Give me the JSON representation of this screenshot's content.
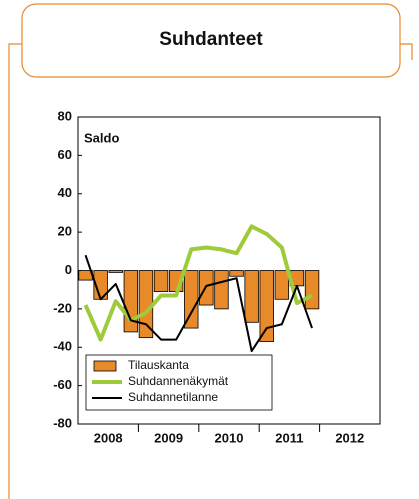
{
  "header": {
    "title": "Suhdanteet"
  },
  "chart_data": {
    "type": "bar-line",
    "annotation": "Saldo",
    "categories": [
      "2008",
      "2009",
      "2010",
      "2011",
      "2012"
    ],
    "x": [
      2008.125,
      2008.375,
      2008.625,
      2008.875,
      2009.125,
      2009.375,
      2009.625,
      2009.875,
      2010.125,
      2010.375,
      2010.625,
      2010.875,
      2011.125,
      2011.375,
      2011.625,
      2011.875
    ],
    "xlim": [
      2008,
      2013
    ],
    "ylim": [
      -80,
      80
    ],
    "yticks": [
      -80,
      -60,
      -40,
      -20,
      0,
      20,
      40,
      60,
      80
    ],
    "series": [
      {
        "name": "Tilauskanta",
        "kind": "bar",
        "color": "#e8892a",
        "values": [
          -5,
          -15,
          -1,
          -32,
          -35,
          -11,
          -11,
          -30,
          -18,
          -20,
          -3,
          -27,
          -37,
          -15,
          -8,
          -20
        ]
      },
      {
        "name": "Suhdannenäkymät",
        "kind": "line",
        "color": "#9dcb3b",
        "values": [
          -18,
          -36,
          -16,
          -26,
          -22,
          -13,
          -13,
          11,
          12,
          11,
          9,
          23,
          19,
          12,
          -17,
          -13
        ]
      },
      {
        "name": "Suhdannetilanne",
        "kind": "line",
        "color": "#000000",
        "values": [
          8,
          -15,
          -7,
          -26,
          -28,
          -36,
          -36,
          -22,
          -8,
          -6,
          -4,
          -42,
          -30,
          -28,
          -8,
          -30
        ]
      }
    ]
  }
}
